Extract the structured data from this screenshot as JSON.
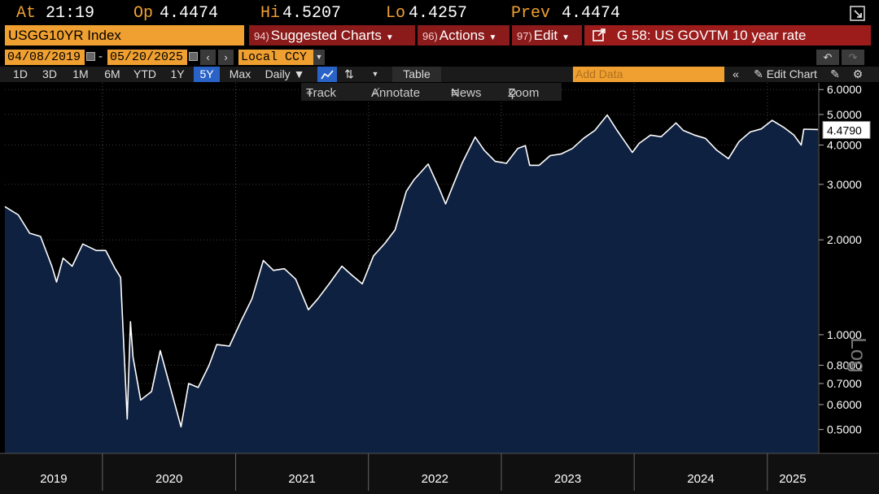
{
  "quote": {
    "at_label": "At",
    "at_value": "21:19",
    "open_label": "Op",
    "open_value": "4.4474",
    "high_label": "Hi",
    "high_value": "4.5207",
    "low_label": "Lo",
    "low_value": "4.4257",
    "prev_label": "Prev",
    "prev_value": "4.4474"
  },
  "menu": {
    "ticker": "USGG10YR Index",
    "suggested_num": "94)",
    "suggested_label": "Suggested Charts",
    "actions_num": "96)",
    "actions_label": "Actions",
    "edit_num": "97)",
    "edit_label": "Edit",
    "chart_title": "G 58: US GOVTM 10 year rate"
  },
  "range": {
    "start_date": "04/08/2019",
    "separator": "-",
    "end_date": "05/20/2025",
    "currency": "Local CCY"
  },
  "periods": [
    "1D",
    "3D",
    "1M",
    "6M",
    "YTD",
    "1Y",
    "5Y",
    "Max"
  ],
  "active_period": "5Y",
  "frequency": "Daily",
  "table_label": "Table",
  "add_data_placeholder": "Add Data",
  "edit_chart_label": "Edit Chart",
  "tools": {
    "track": "Track",
    "annotate": "Annotate",
    "news": "News",
    "zoom": "Zoom"
  },
  "colors": {
    "accent_orange": "#f0a030",
    "menu_red": "#8b1a1a",
    "area_fill": "#0f2140",
    "line": "#ffffff",
    "active_blue": "#2a63c8"
  },
  "icons": [
    "calendar-icon",
    "arrow-left-icon",
    "arrow-right-icon",
    "dropdown-icon",
    "line-chart-icon",
    "chart-type-icon",
    "undo-icon",
    "redo-icon",
    "pencil-icon",
    "settings-icon",
    "export-icon",
    "crosshair-icon",
    "annotate-icon",
    "news-icon",
    "zoom-icon",
    "back-icon"
  ],
  "chart_data": {
    "type": "area",
    "title": "",
    "ylabel": "Log",
    "yscale": "log",
    "ylim": [
      0.42,
      6.3
    ],
    "yticks": [
      6.0,
      5.0,
      4.0,
      3.0,
      2.0,
      1.0,
      0.8,
      0.7,
      0.6,
      0.5
    ],
    "ytick_labels": [
      "6.0000",
      "5.0000",
      "4.0000",
      "3.0000",
      "2.0000",
      "1.0000",
      "0.8000",
      "0.7000",
      "0.6000",
      "0.5000"
    ],
    "xlim": [
      "2019-04-08",
      "2025-05-20"
    ],
    "year_labels": [
      "2019",
      "2020",
      "2021",
      "2022",
      "2023",
      "2024",
      "2025"
    ],
    "last_value_label": "4.4790",
    "grid": true,
    "series": [
      {
        "x": [
          "2019-04-08",
          "2019-05-15",
          "2019-06-15",
          "2019-07-15",
          "2019-08-15",
          "2019-08-28",
          "2019-09-15",
          "2019-10-10",
          "2019-11-08",
          "2019-12-15",
          "2020-01-10",
          "2020-02-05",
          "2020-02-20",
          "2020-03-09",
          "2020-03-18",
          "2020-03-25",
          "2020-04-15",
          "2020-05-15",
          "2020-06-08",
          "2020-07-15",
          "2020-08-04",
          "2020-08-25",
          "2020-09-20",
          "2020-10-20",
          "2020-11-10",
          "2020-12-15",
          "2021-01-15",
          "2021-02-15",
          "2021-03-18",
          "2021-04-15",
          "2021-05-15",
          "2021-06-15",
          "2021-07-20",
          "2021-08-15",
          "2021-09-15",
          "2021-10-20",
          "2021-11-15",
          "2021-12-15",
          "2022-01-15",
          "2022-02-15",
          "2022-03-15",
          "2022-04-15",
          "2022-05-06",
          "2022-06-14",
          "2022-07-15",
          "2022-08-01",
          "2022-08-20",
          "2022-09-15",
          "2022-10-21",
          "2022-11-15",
          "2022-12-15",
          "2023-01-15",
          "2023-02-15",
          "2023-03-08",
          "2023-03-20",
          "2023-04-15",
          "2023-05-15",
          "2023-06-15",
          "2023-07-15",
          "2023-08-15",
          "2023-09-15",
          "2023-10-19",
          "2023-11-15",
          "2023-12-27",
          "2024-01-15",
          "2024-02-15",
          "2024-03-15",
          "2024-04-25",
          "2024-05-15",
          "2024-06-15",
          "2024-07-15",
          "2024-08-15",
          "2024-09-16",
          "2024-10-15",
          "2024-11-15",
          "2024-12-15",
          "2025-01-14",
          "2025-02-15",
          "2025-03-15",
          "2025-04-04",
          "2025-04-11",
          "2025-05-20"
        ],
        "values": [
          2.55,
          2.4,
          2.1,
          2.05,
          1.65,
          1.47,
          1.75,
          1.65,
          1.94,
          1.85,
          1.85,
          1.62,
          1.52,
          0.54,
          1.1,
          0.85,
          0.62,
          0.66,
          0.89,
          0.62,
          0.51,
          0.7,
          0.68,
          0.8,
          0.93,
          0.92,
          1.1,
          1.3,
          1.72,
          1.6,
          1.62,
          1.5,
          1.2,
          1.3,
          1.45,
          1.65,
          1.55,
          1.45,
          1.78,
          1.95,
          2.15,
          2.85,
          3.1,
          3.48,
          2.9,
          2.6,
          2.95,
          3.5,
          4.24,
          3.85,
          3.55,
          3.5,
          3.9,
          3.98,
          3.45,
          3.45,
          3.7,
          3.75,
          3.9,
          4.2,
          4.45,
          4.98,
          4.45,
          3.79,
          4.05,
          4.3,
          4.25,
          4.7,
          4.45,
          4.3,
          4.2,
          3.85,
          3.62,
          4.1,
          4.4,
          4.5,
          4.79,
          4.55,
          4.3,
          4.0,
          4.49,
          4.479
        ]
      }
    ]
  }
}
